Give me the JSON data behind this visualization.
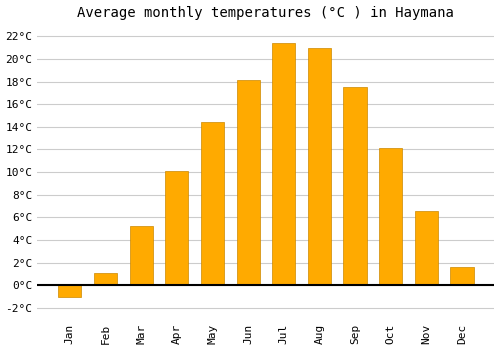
{
  "months": [
    "Jan",
    "Feb",
    "Mar",
    "Apr",
    "May",
    "Jun",
    "Jul",
    "Aug",
    "Sep",
    "Oct",
    "Nov",
    "Dec"
  ],
  "values": [
    -1.0,
    1.1,
    5.2,
    10.1,
    14.4,
    18.1,
    21.4,
    21.0,
    17.5,
    12.1,
    6.6,
    1.6
  ],
  "bar_color": "#FFAA00",
  "bar_edge_color": "#CC8800",
  "title": "Average monthly temperatures (°C ) in Haymana",
  "ylim": [
    -3,
    23
  ],
  "yticks": [
    -2,
    0,
    2,
    4,
    6,
    8,
    10,
    12,
    14,
    16,
    18,
    20,
    22
  ],
  "background_color": "#ffffff",
  "grid_color": "#cccccc",
  "title_fontsize": 10,
  "tick_fontsize": 8,
  "font_family": "monospace",
  "bar_width": 0.65
}
